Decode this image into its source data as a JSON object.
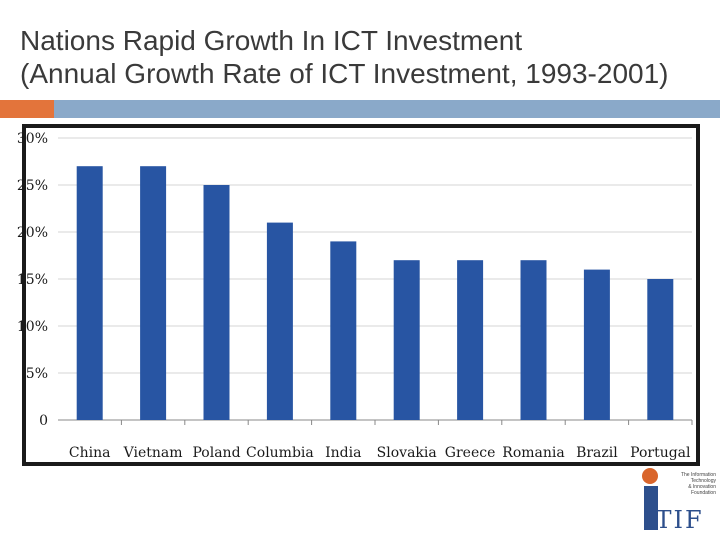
{
  "slide": {
    "title": "Nations Rapid Growth In ICT Investment\n(Annual Growth Rate of ICT Investment, 1993-2001)"
  },
  "logo": {
    "text": "ITIF",
    "tagline": "The Information\nTechnology\n& Innovation\nFoundation"
  },
  "colors": {
    "bar": "#2855a3",
    "accent_orange": "#e3743b",
    "accent_blue": "#8aa9c9",
    "frame": "#1a1a1a"
  },
  "chart_data": {
    "type": "bar",
    "categories": [
      "China",
      "Vietnam",
      "Poland",
      "Columbia",
      "India",
      "Slovakia",
      "Greece",
      "Romania",
      "Brazil",
      "Portugal"
    ],
    "values": [
      27,
      27,
      25,
      21,
      19,
      17,
      17,
      17,
      16,
      15
    ],
    "yticks": [
      "0",
      "5%",
      "10%",
      "15%",
      "20%",
      "25%",
      "30%"
    ],
    "ylim": [
      0,
      30
    ],
    "grid": true,
    "title": "",
    "xlabel": "",
    "ylabel": ""
  }
}
